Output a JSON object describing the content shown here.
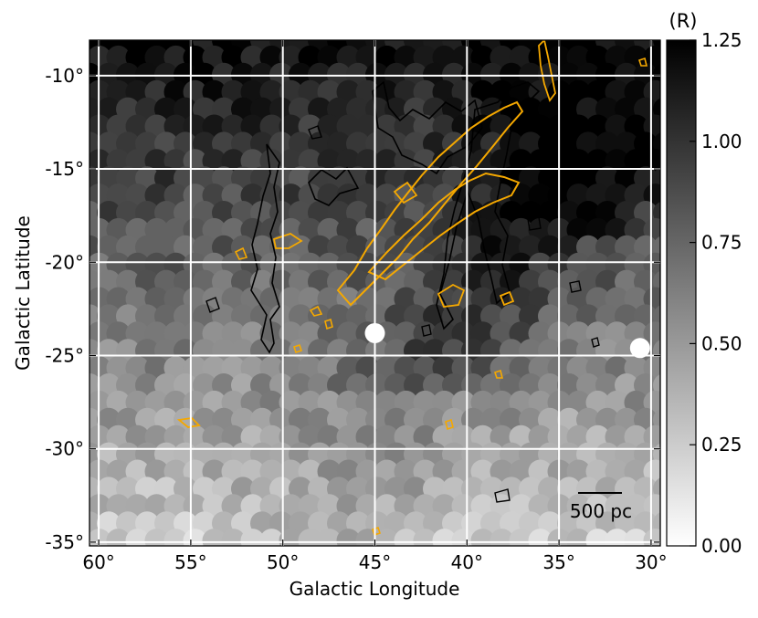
{
  "chart_data": {
    "type": "heatmap",
    "xlabel": "Galactic Longitude",
    "ylabel": "Galactic Latitude",
    "xlim": [
      60.5,
      29.5
    ],
    "ylim": [
      -35.2,
      -8.1
    ],
    "x_ticks": [
      60,
      55,
      50,
      45,
      40,
      35,
      30
    ],
    "x_tick_labels": [
      "60°",
      "55°",
      "50°",
      "45°",
      "40°",
      "35°",
      "30°"
    ],
    "y_ticks": [
      -10,
      -15,
      -20,
      -25,
      -30,
      -35
    ],
    "y_tick_labels": [
      "-10°",
      "-15°",
      "-20°",
      "-25°",
      "-30°",
      "-35°"
    ],
    "grid": true,
    "grid_color": "#ffffff",
    "colormap": "gray_r",
    "colorbar": {
      "label": "(R)",
      "range": [
        0.0,
        1.25
      ],
      "ticks": [
        0.0,
        0.25,
        0.5,
        0.75,
        1.0,
        1.25
      ],
      "tick_labels": [
        "0.00",
        "0.25",
        "0.50",
        "0.75",
        "1.00",
        "1.25"
      ]
    },
    "contour_colors": {
      "black": "#000000",
      "orange": "#f5a800"
    },
    "scale_bar": {
      "label": "500 pc"
    },
    "masked_sources": [
      {
        "lon": 45.0,
        "lat": -23.8
      },
      {
        "lon": 30.6,
        "lat": -24.6
      }
    ]
  }
}
